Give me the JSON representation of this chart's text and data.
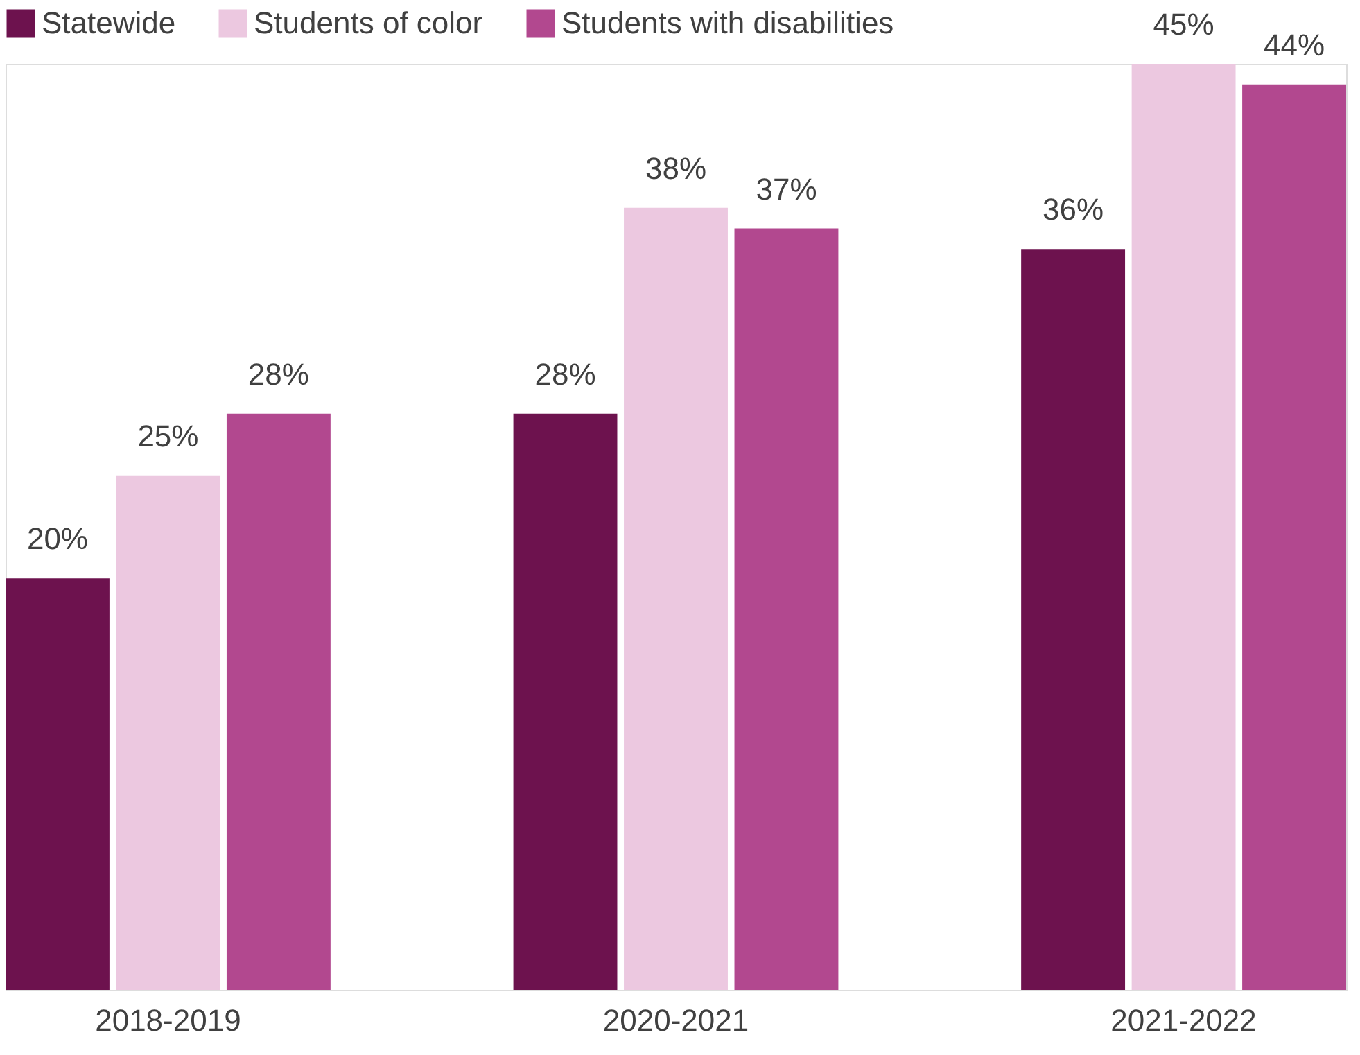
{
  "chart_data": {
    "type": "bar",
    "categories": [
      "2018-2019",
      "2020-2021",
      "2021-2022"
    ],
    "series": [
      {
        "name": "Statewide",
        "color": "#6d124e",
        "values": [
          20,
          28,
          36
        ],
        "value_labels": [
          "20%",
          "28%",
          "36%"
        ]
      },
      {
        "name": "Students of color",
        "color": "#ecc8e0",
        "values": [
          25,
          38,
          45
        ],
        "value_labels": [
          "25%",
          "38%",
          "45%"
        ]
      },
      {
        "name": "Students with disabilities",
        "color": "#b2488f",
        "values": [
          28,
          37,
          44
        ],
        "value_labels": [
          "28%",
          "37%",
          "44%"
        ]
      }
    ],
    "legend": "top left",
    "grid": false
  }
}
